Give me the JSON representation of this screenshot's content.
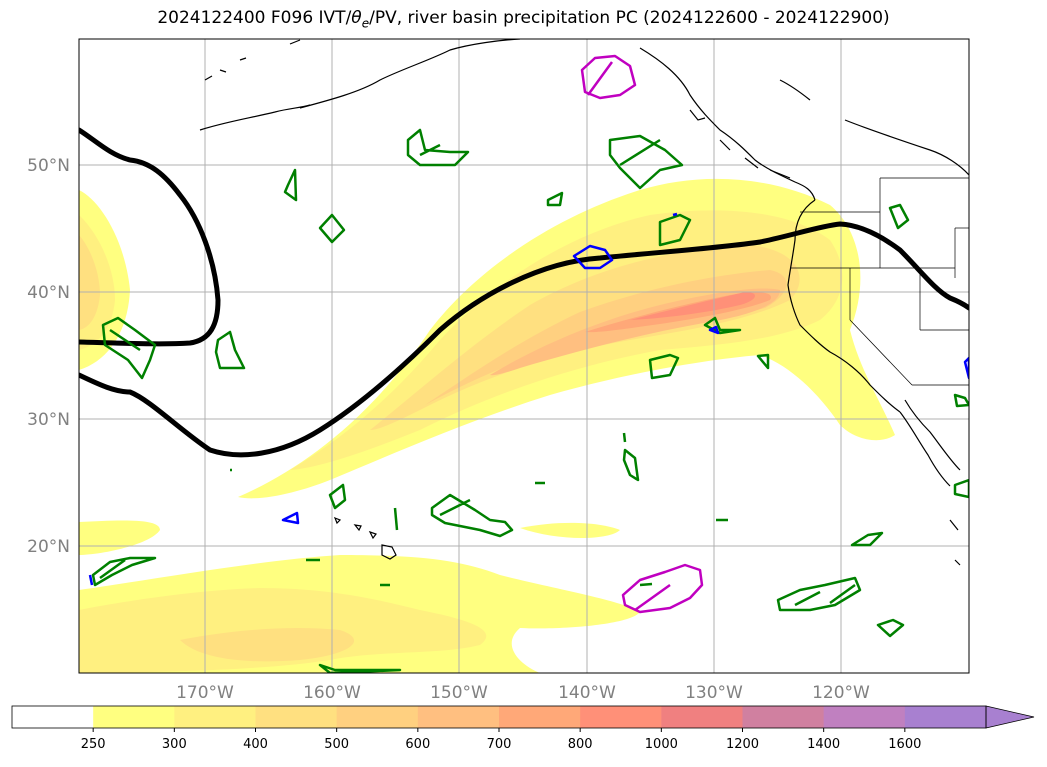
{
  "title": {
    "prefix": "2024122400 F096 IVT/",
    "theta_symbol": "θ",
    "theta_sub": "e",
    "suffix": "/PV, river basin precipitation PC (2024122600 - 2024122900)"
  },
  "map": {
    "lat_labels": [
      "50°N",
      "40°N",
      "30°N",
      "20°N"
    ],
    "lon_labels": [
      "170°W",
      "160°W",
      "150°W",
      "140°W",
      "130°W",
      "120°W"
    ],
    "contour_colors": {
      "theta_e": "#000000",
      "pv_green": "#008000",
      "pv_blue": "#0000ff",
      "pv_magenta": "#c000c0"
    }
  },
  "colorbar": {
    "labels": [
      "250",
      "300",
      "400",
      "500",
      "600",
      "700",
      "800",
      "1000",
      "1200",
      "1400",
      "1600"
    ],
    "colors": [
      "#ffffff",
      "#ffff80",
      "#fff080",
      "#ffe080",
      "#ffd080",
      "#ffbf80",
      "#ffa878",
      "#ff9078",
      "#f08080",
      "#d080a0",
      "#c080c0",
      "#a880d0"
    ]
  }
}
